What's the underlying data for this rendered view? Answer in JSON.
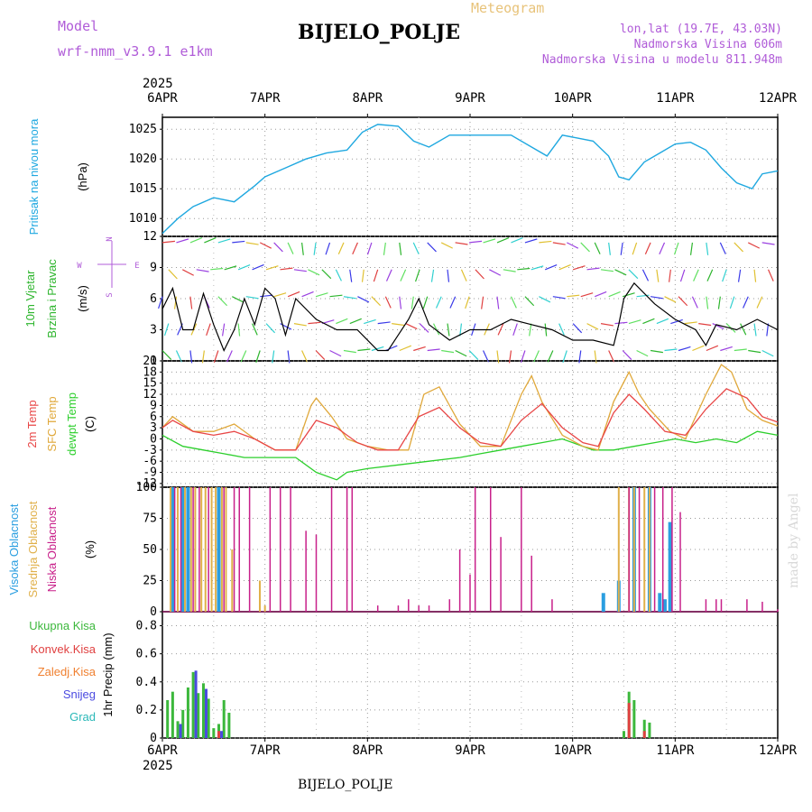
{
  "header": {
    "model_label": "Model",
    "model_name": "wrf-nmm_v3.9.1 e1km",
    "title": "BIJELO_POLJE",
    "meteogram": "Meteogram",
    "lonlat": "lon,lat (19.7E, 43.03N)",
    "altitude": "Nadmorska Visina 606m",
    "model_altitude": "Nadmorska Visina u modelu 811.948m",
    "footer_title": "BIJELO_POLJE",
    "watermark": "made by Angel"
  },
  "colors": {
    "pressure": "#1fa8e0",
    "wind": "#2db52d",
    "temp2m": "#e84646",
    "sfc_temp": "#e0a83a",
    "dewpt": "#2ccf2c",
    "high_cloud": "#2a9ee0",
    "mid_cloud": "#e0b04a",
    "low_cloud": "#c8208a",
    "precip_total": "#3cb83c",
    "convective": "#e04040",
    "frozen": "#f08030",
    "snow": "#4a4ae0",
    "grad": "#2ab8b8",
    "label_violet": "#b05cd8",
    "grid": "#999999"
  },
  "x_axis": {
    "top_year": "2025",
    "bottom_year": "2025",
    "ticks": [
      "6APR",
      "7APR",
      "8APR",
      "9APR",
      "10APR",
      "11APR",
      "12APR"
    ],
    "range_days": [
      0,
      6
    ]
  },
  "chart_data": [
    {
      "type": "line",
      "panel": "pressure",
      "labels": [
        "Pritisak na nivou mora",
        "(hPa)"
      ],
      "ylim": [
        1007,
        1027
      ],
      "yticks": [
        1010,
        1015,
        1020,
        1025
      ],
      "grid": true,
      "series": [
        {
          "name": "Pritisak na nivou mora",
          "x": [
            0,
            0.15,
            0.3,
            0.5,
            0.7,
            0.9,
            1.0,
            1.2,
            1.4,
            1.6,
            1.8,
            1.95,
            2.1,
            2.3,
            2.45,
            2.6,
            2.8,
            3.0,
            3.2,
            3.4,
            3.6,
            3.75,
            3.9,
            4.05,
            4.2,
            4.35,
            4.45,
            4.55,
            4.7,
            4.85,
            5.0,
            5.15,
            5.3,
            5.45,
            5.6,
            5.75,
            5.85,
            6.0
          ],
          "y": [
            1007.5,
            1010.0,
            1012.0,
            1013.5,
            1012.8,
            1015.5,
            1017.0,
            1018.5,
            1020.0,
            1021.0,
            1021.5,
            1024.5,
            1025.8,
            1025.5,
            1023.0,
            1022.0,
            1024.0,
            1024.0,
            1024.0,
            1024.0,
            1022.0,
            1020.5,
            1024.0,
            1023.5,
            1023.0,
            1020.5,
            1017.0,
            1016.5,
            1019.5,
            1021.0,
            1022.5,
            1022.8,
            1021.5,
            1018.5,
            1016.0,
            1015.0,
            1017.5,
            1018.0
          ]
        }
      ]
    },
    {
      "type": "line",
      "panel": "wind",
      "labels": [
        "10m Vjetar",
        "Brzina i Pravac",
        "(m/s)"
      ],
      "compass": [
        "N",
        "E",
        "S",
        "W"
      ],
      "ylim": [
        0,
        12
      ],
      "yticks": [
        0,
        3,
        6,
        9,
        12
      ],
      "grid": true,
      "series": [
        {
          "name": "10m Vjetar Brzina",
          "x": [
            0,
            0.1,
            0.2,
            0.3,
            0.4,
            0.5,
            0.6,
            0.7,
            0.8,
            0.9,
            1.0,
            1.1,
            1.2,
            1.3,
            1.5,
            1.7,
            1.9,
            2.1,
            2.2,
            2.3,
            2.4,
            2.5,
            2.6,
            2.8,
            3.0,
            3.2,
            3.4,
            3.6,
            3.8,
            4.0,
            4.2,
            4.4,
            4.45,
            4.5,
            4.6,
            4.8,
            5.0,
            5.2,
            5.3,
            5.4,
            5.6,
            5.8,
            6.0
          ],
          "y": [
            5.0,
            7.0,
            3.0,
            3.0,
            6.5,
            3.5,
            1.0,
            3.0,
            6.0,
            3.5,
            7.0,
            6.0,
            2.5,
            6.0,
            4.0,
            3.0,
            3.0,
            1.0,
            1.0,
            2.5,
            4.0,
            6.0,
            3.5,
            2.0,
            3.0,
            3.0,
            4.0,
            3.5,
            3.0,
            2.0,
            2.0,
            1.5,
            3.5,
            6.0,
            7.5,
            5.5,
            4.0,
            3.0,
            1.5,
            3.5,
            3.0,
            4.0,
            3.0
          ]
        }
      ]
    },
    {
      "type": "line",
      "panel": "temperature",
      "labels": [
        "2m Temp",
        "SFC Temp",
        "dewpt Temp",
        "(C)"
      ],
      "ylim": [
        -13,
        21
      ],
      "yticks": [
        -12,
        -9,
        -6,
        -3,
        0,
        3,
        6,
        9,
        12,
        15,
        18,
        21
      ],
      "grid": true,
      "series": [
        {
          "name": "2m Temp",
          "x": [
            0,
            0.1,
            0.3,
            0.5,
            0.7,
            0.9,
            1.1,
            1.3,
            1.5,
            1.7,
            1.9,
            2.1,
            2.3,
            2.5,
            2.7,
            2.9,
            3.1,
            3.3,
            3.5,
            3.7,
            3.9,
            4.1,
            4.25,
            4.4,
            4.55,
            4.7,
            4.9,
            5.1,
            5.3,
            5.5,
            5.7,
            5.85,
            6.0
          ],
          "y": [
            3.0,
            5.0,
            2.0,
            1.0,
            2.0,
            0.0,
            -3.0,
            -3.0,
            5.0,
            3.0,
            -1.0,
            -3.0,
            -3.0,
            6.0,
            8.5,
            3.0,
            -1.0,
            -2.0,
            5.0,
            9.5,
            3.0,
            -1.0,
            -2.0,
            7.0,
            12.0,
            8.0,
            2.0,
            1.0,
            8.0,
            13.5,
            11.0,
            6.0,
            4.5
          ]
        },
        {
          "name": "SFC Temp",
          "x": [
            0,
            0.1,
            0.3,
            0.5,
            0.7,
            0.9,
            1.1,
            1.3,
            1.45,
            1.5,
            1.65,
            1.8,
            2.0,
            2.2,
            2.4,
            2.55,
            2.7,
            2.9,
            3.1,
            3.3,
            3.5,
            3.6,
            3.7,
            3.9,
            4.1,
            4.25,
            4.4,
            4.55,
            4.65,
            4.75,
            4.95,
            5.1,
            5.3,
            5.45,
            5.55,
            5.7,
            5.85,
            6.0
          ],
          "y": [
            3.0,
            6.0,
            2.0,
            2.0,
            4.0,
            0.0,
            -3.0,
            -3.0,
            9.0,
            11.0,
            6.0,
            0.0,
            -2.0,
            -3.0,
            -3.0,
            12.0,
            14.0,
            4.0,
            -2.0,
            -2.0,
            12.0,
            17.0,
            10.0,
            1.0,
            -2.0,
            -3.0,
            10.0,
            18.0,
            12.0,
            8.0,
            2.0,
            0.0,
            12.0,
            20.0,
            18.0,
            8.0,
            5.0,
            3.5
          ]
        },
        {
          "name": "dewpt Temp",
          "x": [
            0,
            0.2,
            0.4,
            0.6,
            0.8,
            1.0,
            1.3,
            1.5,
            1.7,
            1.8,
            2.0,
            2.3,
            2.6,
            2.9,
            3.1,
            3.3,
            3.5,
            3.7,
            3.9,
            4.2,
            4.4,
            4.6,
            4.8,
            5.0,
            5.2,
            5.4,
            5.6,
            5.8,
            6.0
          ],
          "y": [
            1.0,
            -2.0,
            -3.0,
            -4.0,
            -5.0,
            -5.0,
            -5.0,
            -9.0,
            -11.0,
            -9.0,
            -8.0,
            -7.0,
            -6.0,
            -5.0,
            -4.0,
            -3.0,
            -2.0,
            -1.0,
            0.0,
            -3.0,
            -3.0,
            -2.0,
            -1.0,
            0.0,
            -1.0,
            0.0,
            -1.0,
            2.0,
            1.0
          ]
        }
      ]
    },
    {
      "type": "bar",
      "panel": "cloud",
      "labels": [
        "Visoka Oblacnost",
        "Srednja Oblacnost",
        "Niska Oblacnost",
        "(%)"
      ],
      "ylim": [
        0,
        100
      ],
      "yticks": [
        0,
        25,
        50,
        75,
        100
      ],
      "grid": true,
      "series": [
        {
          "name": "Visoka Oblacnost",
          "x": [
            0.1,
            0.2,
            0.25,
            0.55,
            4.3,
            4.45,
            4.6,
            4.75,
            4.85,
            4.9,
            4.95
          ],
          "values": [
            100,
            100,
            100,
            100,
            15,
            25,
            100,
            100,
            15,
            10,
            72
          ]
        },
        {
          "name": "Srednja Oblacnost",
          "x": [
            0.08,
            0.15,
            0.22,
            0.28,
            0.32,
            0.38,
            0.42,
            0.48,
            0.52,
            0.58,
            0.62,
            0.68,
            0.95,
            1.0,
            4.45,
            4.55,
            4.6,
            4.7,
            4.75
          ],
          "values": [
            100,
            100,
            100,
            100,
            100,
            100,
            100,
            100,
            100,
            100,
            100,
            50,
            25,
            5,
            100,
            100,
            100,
            100,
            100
          ],
          "ylabel_note": "percentage"
        },
        {
          "name": "Niska Oblacnost",
          "x": [
            0.12,
            0.18,
            0.3,
            0.36,
            0.45,
            0.6,
            0.7,
            0.75,
            0.85,
            1.05,
            1.15,
            1.25,
            1.4,
            1.5,
            1.65,
            1.8,
            1.85,
            2.1,
            2.3,
            2.4,
            2.5,
            2.6,
            2.8,
            2.9,
            3.0,
            3.05,
            3.2,
            3.3,
            3.5,
            3.6,
            3.8,
            4.55,
            4.65,
            4.8,
            4.88,
            4.97,
            5.05,
            5.3,
            5.4,
            5.45,
            5.7,
            5.85,
            6.0
          ],
          "values": [
            100,
            100,
            100,
            100,
            100,
            100,
            100,
            100,
            100,
            100,
            100,
            100,
            65,
            62,
            100,
            100,
            100,
            5,
            5,
            10,
            5,
            5,
            10,
            50,
            30,
            100,
            100,
            60,
            100,
            45,
            10,
            100,
            100,
            100,
            100,
            100,
            80,
            10,
            10,
            10,
            10,
            8,
            2
          ]
        }
      ]
    },
    {
      "type": "bar",
      "panel": "precip",
      "labels": [
        "Ukupna Kisa",
        "Konvek.Kisa",
        "Zaledj.Kisa",
        "Snijeg",
        "Grad",
        "1hr Precip (mm)"
      ],
      "ylim": [
        0,
        0.9
      ],
      "yticks": [
        0,
        0.2,
        0.4,
        0.6,
        0.8
      ],
      "grid": true,
      "series": [
        {
          "name": "Ukupna Kisa",
          "x": [
            0.05,
            0.1,
            0.15,
            0.2,
            0.25,
            0.3,
            0.35,
            0.4,
            0.45,
            0.5,
            0.55,
            0.6,
            0.65,
            4.5,
            4.55,
            4.6,
            4.7,
            4.75
          ],
          "values": [
            0.27,
            0.33,
            0.12,
            0.2,
            0.36,
            0.47,
            0.32,
            0.39,
            0.28,
            0.07,
            0.1,
            0.27,
            0.18,
            0.05,
            0.33,
            0.27,
            0.13,
            0.11
          ]
        },
        {
          "name": "Konvek.Kisa",
          "x": [
            0.55,
            4.55,
            4.7
          ],
          "values": [
            0.05,
            0.25,
            0.05
          ]
        },
        {
          "name": "Snijeg",
          "x": [
            0.15,
            0.3,
            0.4,
            0.55
          ],
          "values": [
            0.1,
            0.48,
            0.35,
            0.05
          ]
        }
      ]
    }
  ]
}
